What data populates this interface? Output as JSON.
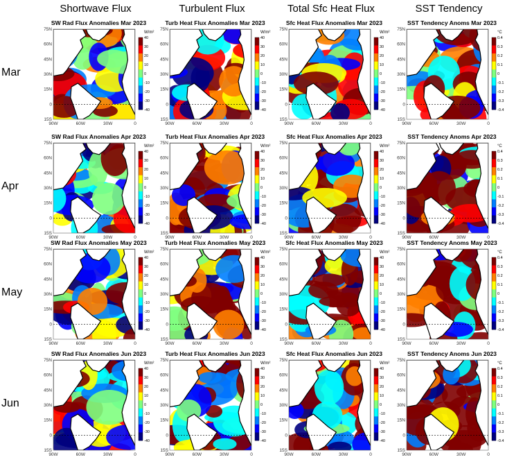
{
  "columns": [
    {
      "title": "Shortwave Flux",
      "unit": "W/m²",
      "ticks": [
        "40",
        "30",
        "20",
        "10",
        "0",
        "-10",
        "-20",
        "-30",
        "-40"
      ]
    },
    {
      "title": "Turbulent Flux",
      "unit": "W/m²",
      "ticks": [
        "40",
        "30",
        "20",
        "10",
        "0",
        "-10",
        "-20",
        "-30",
        "-40"
      ]
    },
    {
      "title": "Total Sfc Heat Flux",
      "unit": "W/m²",
      "ticks": [
        "40",
        "30",
        "20",
        "10",
        "0",
        "-10",
        "-20",
        "-30",
        "-40"
      ]
    },
    {
      "title": "SST Tendency",
      "unit": "°C",
      "ticks": [
        "0.4",
        "0.3",
        "0.2",
        "0.1",
        "0",
        "-0.1",
        "-0.2",
        "-0.3",
        "-0.4"
      ]
    }
  ],
  "rows": [
    "Mar",
    "Apr",
    "May",
    "Jun"
  ],
  "panels": [
    [
      "SW Rad Flux Anomalies Mar 2023",
      "Turb Heat Flux Anomalies Mar 2023",
      "Sfc Heat Flux Anomalies Mar 2023",
      "SST Tendency Anoms Mar 2023"
    ],
    [
      "SW Rad Flux Anomalies Apr 2023",
      "Turb Heat Flux Anomalies Apr 2023",
      "Sfc Heat Flux Anomalies Apr 2023",
      "SST Tendency Anoms Apr 2023"
    ],
    [
      "SW Rad Flux Anomalies May 2023",
      "Turb Heat Flux Anomalies May 2023",
      "Sfc Heat Flux Anomalies May 2023",
      "SST Tendency Anoms May 2023"
    ],
    [
      "SW Rad Flux Anomalies Jun 2023",
      "Turb Heat Flux Anomalies Jun 2023",
      "Sfc Heat Flux Anomalies Jun 2023",
      "SST Tendency Anoms Jun 2023"
    ]
  ],
  "lat_ticks": [
    "75N",
    "60N",
    "45N",
    "30N",
    "15N",
    "0",
    "15S"
  ],
  "lon_ticks": [
    "90W",
    "60W",
    "30W",
    "0"
  ],
  "colormap": [
    "#00007f",
    "#0000ff",
    "#007fff",
    "#00ffff",
    "#7fff7f",
    "#ffff00",
    "#ff7f00",
    "#ff0000",
    "#7f0000"
  ]
}
